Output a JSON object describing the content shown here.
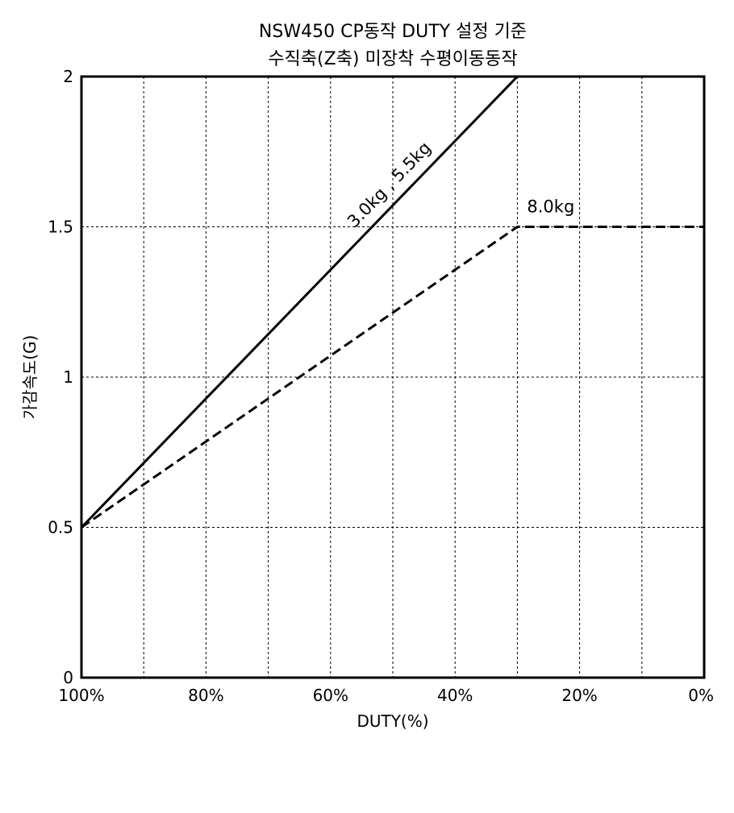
{
  "chart_data": {
    "type": "line",
    "title": "NSW450 CP동작 DUTY 설정 기준",
    "subtitle": "수직축(Z축) 미장착 수평이동동작",
    "xlabel": "DUTY(%)",
    "ylabel": "가감속도(G)",
    "xlim": [
      100,
      0
    ],
    "ylim": [
      0,
      2
    ],
    "x_ticks": [
      100,
      90,
      80,
      70,
      60,
      50,
      40,
      30,
      20,
      10,
      0
    ],
    "x_tick_labels": [
      "100%",
      "80%",
      "60%",
      "40%",
      "20%",
      "0%"
    ],
    "x_tick_label_values": [
      100,
      80,
      60,
      40,
      20,
      0
    ],
    "y_ticks": [
      0,
      0.5,
      1,
      1.5,
      2
    ],
    "y_tick_labels": [
      "0",
      "0.5",
      "1",
      "1.5",
      "2"
    ],
    "grid": true,
    "series": [
      {
        "name": "3.0kg , 5.5kg",
        "style": "solid",
        "x": [
          100,
          30
        ],
        "y": [
          0.5,
          2.0
        ]
      },
      {
        "name": "8.0kg",
        "style": "dashed",
        "x": [
          100,
          30,
          0
        ],
        "y": [
          0.5,
          1.5,
          1.5
        ]
      }
    ],
    "colors": {
      "line": "#000000",
      "grid": "#000000",
      "background": "#ffffff"
    }
  }
}
